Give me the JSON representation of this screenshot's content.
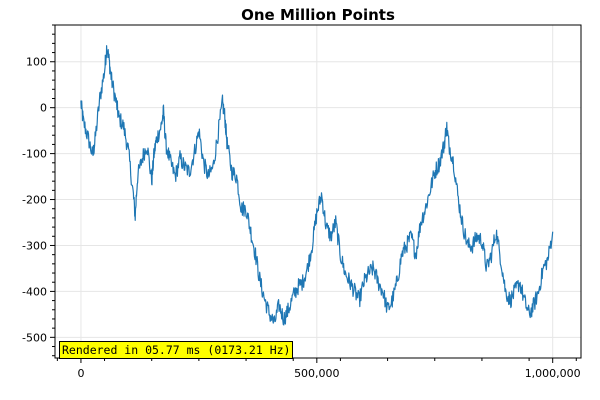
{
  "chart_data": {
    "type": "line",
    "title": "One Million Points",
    "xlabel": "",
    "ylabel": "",
    "xlim": [
      -55000,
      1060000
    ],
    "ylim": [
      -545,
      180
    ],
    "x_ticks": [
      {
        "value": 0,
        "label": "0"
      },
      {
        "value": 500000,
        "label": "500,000"
      },
      {
        "value": 1000000,
        "label": "1,000,000"
      }
    ],
    "y_ticks": [
      {
        "value": 100,
        "label": "100"
      },
      {
        "value": 0,
        "label": "0"
      },
      {
        "value": -100,
        "label": "-100"
      },
      {
        "value": -200,
        "label": "-200"
      },
      {
        "value": -300,
        "label": "-300"
      },
      {
        "value": -400,
        "label": "-400"
      },
      {
        "value": -500,
        "label": "-500"
      }
    ],
    "grid": true,
    "line_color": "#1f77b4",
    "series": [
      {
        "x": [
          0,
          5000,
          15000,
          25000,
          30000,
          40000,
          50000,
          55000,
          60000,
          65000,
          75000,
          80000,
          90000,
          100000,
          110000,
          115000,
          120000,
          130000,
          140000,
          150000,
          155000,
          160000,
          170000,
          175000,
          180000,
          190000,
          200000,
          210000,
          220000,
          230000,
          240000,
          250000,
          260000,
          270000,
          280000,
          290000,
          300000,
          305000,
          310000,
          320000,
          330000,
          340000,
          350000,
          360000,
          370000,
          380000,
          390000,
          400000,
          410000,
          420000,
          430000,
          440000,
          450000,
          460000,
          470000,
          480000,
          490000,
          500000,
          510000,
          520000,
          530000,
          540000,
          550000,
          560000,
          570000,
          580000,
          590000,
          600000,
          610000,
          620000,
          630000,
          640000,
          650000,
          660000,
          670000,
          680000,
          690000,
          700000,
          710000,
          720000,
          730000,
          740000,
          750000,
          760000,
          770000,
          775000,
          780000,
          790000,
          800000,
          810000,
          820000,
          830000,
          840000,
          850000,
          860000,
          870000,
          880000,
          890000,
          900000,
          910000,
          920000,
          930000,
          940000,
          950000,
          960000,
          970000,
          980000,
          990000,
          1000000
        ],
        "y": [
          10,
          -30,
          -65,
          -105,
          -70,
          20,
          80,
          135,
          100,
          60,
          10,
          -20,
          -40,
          -90,
          -180,
          -235,
          -150,
          -110,
          -80,
          -160,
          -100,
          -70,
          -40,
          -10,
          -80,
          -120,
          -150,
          -110,
          -130,
          -140,
          -100,
          -50,
          -120,
          -150,
          -130,
          -60,
          10,
          -20,
          -80,
          -140,
          -150,
          -220,
          -220,
          -270,
          -320,
          -380,
          -420,
          -450,
          -470,
          -430,
          -460,
          -440,
          -410,
          -390,
          -380,
          -350,
          -300,
          -230,
          -190,
          -260,
          -280,
          -250,
          -320,
          -360,
          -380,
          -400,
          -420,
          -380,
          -360,
          -350,
          -380,
          -400,
          -440,
          -420,
          -380,
          -320,
          -300,
          -280,
          -320,
          -250,
          -220,
          -180,
          -140,
          -120,
          -80,
          -40,
          -80,
          -120,
          -200,
          -260,
          -300,
          -300,
          -280,
          -290,
          -350,
          -320,
          -270,
          -330,
          -400,
          -420,
          -400,
          -380,
          -420,
          -450,
          -430,
          -400,
          -350,
          -330,
          -270
        ]
      }
    ]
  },
  "render_badge": {
    "text": "Rendered in 05.77 ms (0173.21 Hz)"
  }
}
